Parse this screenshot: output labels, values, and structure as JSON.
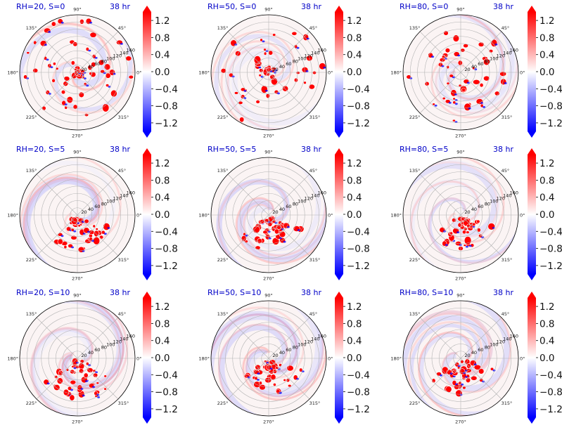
{
  "chart_data": {
    "type": "polar-field-panel-grid",
    "time_label": "38 hr",
    "layout": "3 rows x 3 columns",
    "panels": [
      {
        "title": "RH=20, S=0",
        "time": "38 hr",
        "rh": 20,
        "s": 0
      },
      {
        "title": "RH=50, S=0",
        "time": "38 hr",
        "rh": 50,
        "s": 0
      },
      {
        "title": "RH=80, S=0",
        "time": "38 hr",
        "rh": 80,
        "s": 0
      },
      {
        "title": "RH=20, S=5",
        "time": "38 hr",
        "rh": 20,
        "s": 5
      },
      {
        "title": "RH=50, S=5",
        "time": "38 hr",
        "rh": 50,
        "s": 5
      },
      {
        "title": "RH=80, S=5",
        "time": "38 hr",
        "rh": 80,
        "s": 5
      },
      {
        "title": "RH=20, S=10",
        "time": "38 hr",
        "rh": 20,
        "s": 10
      },
      {
        "title": "RH=50, S=10",
        "time": "38 hr",
        "rh": 50,
        "s": 10
      },
      {
        "title": "RH=80, S=10",
        "time": "38 hr",
        "rh": 80,
        "s": 10
      }
    ],
    "angular_ticks": [
      "0°",
      "45°",
      "90°",
      "135°",
      "180°",
      "225°",
      "270°",
      "315°"
    ],
    "radial_ticks": [
      "20",
      "40",
      "60",
      "80",
      "100",
      "120",
      "140",
      "160"
    ],
    "radial_rings": 8,
    "colorbar": {
      "colormap": "bwr",
      "ticks": [
        "1.2",
        "0.8",
        "0.4",
        "0.0",
        "−0.4",
        "−0.8",
        "−1.2"
      ],
      "tick_values": [
        1.2,
        0.8,
        0.4,
        0.0,
        -0.4,
        -0.8,
        -1.2
      ],
      "range": [
        -1.4,
        1.4
      ],
      "extend": "both"
    },
    "grid": true
  },
  "colors": {
    "title": "#0000c8",
    "positive": "#ff0000",
    "negative": "#0000ff",
    "neutral": "#ffffff",
    "grid": "#b4b4b4"
  }
}
